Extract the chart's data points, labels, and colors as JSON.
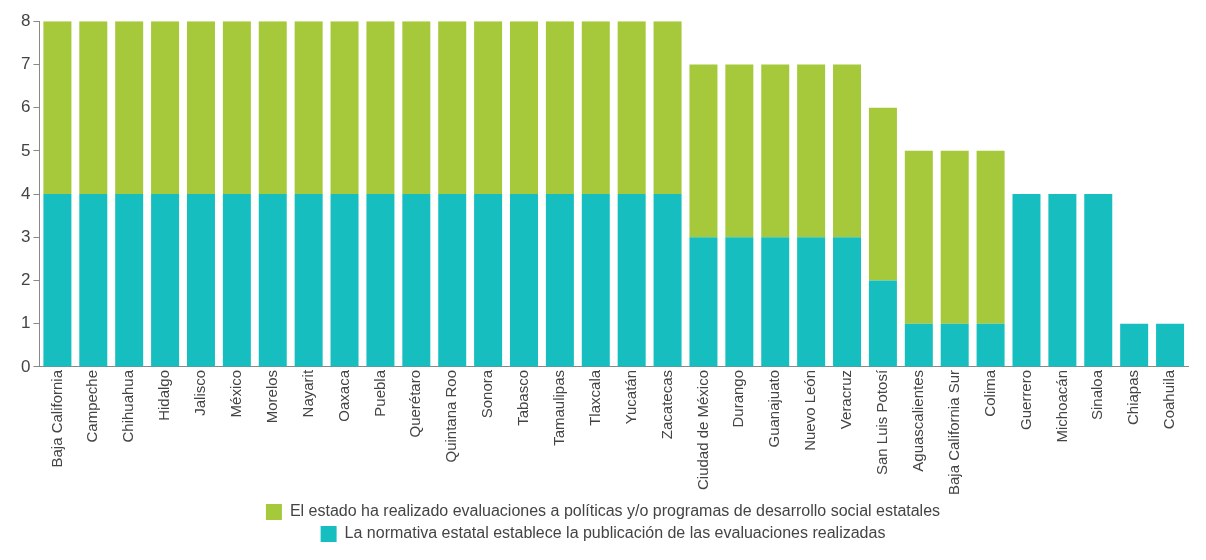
{
  "chart_data": {
    "type": "bar",
    "stacked": true,
    "categories": [
      "Baja California",
      "Campeche",
      "Chihuahua",
      "Hidalgo",
      "Jalisco",
      "México",
      "Morelos",
      "Nayarit",
      "Oaxaca",
      "Puebla",
      "Querétaro",
      "Quintana Roo",
      "Sonora",
      "Tabasco",
      "Tamaulipas",
      "Tlaxcala",
      "Yucatán",
      "Zacatecas",
      "Ciudad de México",
      "Durango",
      "Guanajuato",
      "Nuevo León",
      "Veracruz",
      "San Luis Potosí",
      "Aguascalientes",
      "Baja California Sur",
      "Colima",
      "Guerrero",
      "Michoacán",
      "Sinaloa",
      "Chiapas",
      "Coahuila"
    ],
    "series": [
      {
        "name": "La normativa estatal establece la publicación de las evaluaciones realizadas",
        "color": "#17bec0",
        "values": [
          4,
          4,
          4,
          4,
          4,
          4,
          4,
          4,
          4,
          4,
          4,
          4,
          4,
          4,
          4,
          4,
          4,
          4,
          3,
          3,
          3,
          3,
          3,
          2,
          1,
          1,
          1,
          4,
          4,
          4,
          1,
          1
        ]
      },
      {
        "name": "El estado ha realizado evaluaciones a políticas y/o programas de desarrollo social estatales",
        "color": "#a5c93a",
        "values": [
          4,
          4,
          4,
          4,
          4,
          4,
          4,
          4,
          4,
          4,
          4,
          4,
          4,
          4,
          4,
          4,
          4,
          4,
          4,
          4,
          4,
          4,
          4,
          4,
          4,
          4,
          4,
          0,
          0,
          0,
          0,
          0
        ]
      }
    ],
    "ylim": [
      0,
      8
    ],
    "yticks": [
      0,
      1,
      2,
      3,
      4,
      5,
      6,
      7,
      8
    ],
    "grid": false,
    "legend": "bottom"
  }
}
